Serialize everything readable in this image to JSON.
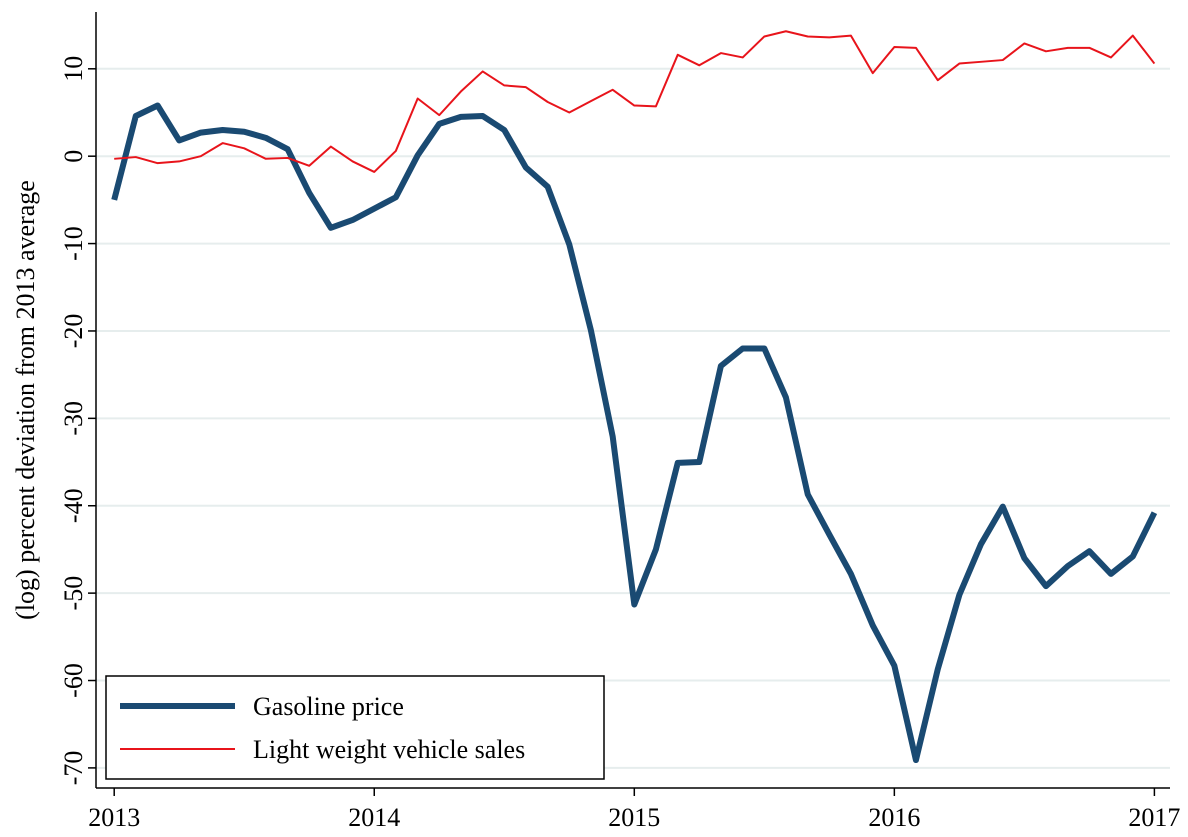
{
  "chart_data": {
    "type": "line",
    "y_label": "(log) percent deviation from 2013 average",
    "x": [
      2013,
      2013.083,
      2013.167,
      2013.25,
      2013.333,
      2013.417,
      2013.5,
      2013.583,
      2013.667,
      2013.75,
      2013.833,
      2013.917,
      2014,
      2014.083,
      2014.167,
      2014.25,
      2014.333,
      2014.417,
      2014.5,
      2014.583,
      2014.667,
      2014.75,
      2014.833,
      2014.917,
      2015,
      2015.083,
      2015.167,
      2015.25,
      2015.333,
      2015.417,
      2015.5,
      2015.583,
      2015.667,
      2015.75,
      2015.833,
      2015.917,
      2016,
      2016.083,
      2016.167,
      2016.25,
      2016.333,
      2016.417,
      2016.5,
      2016.583,
      2016.667,
      2016.75,
      2016.833,
      2016.917,
      2017
    ],
    "series": [
      {
        "name": "Gasoline price",
        "color": "#1a4a72",
        "width": 6,
        "values": [
          -5.0,
          4.6,
          5.8,
          1.8,
          2.7,
          3.0,
          2.8,
          2.1,
          0.8,
          -4.2,
          -8.2,
          -7.3,
          -6.0,
          -4.7,
          0.1,
          3.7,
          4.5,
          4.6,
          3.0,
          -1.3,
          -3.5,
          -10.1,
          -19.9,
          -32.1,
          -51.3,
          -45.0,
          -35.1,
          -35.0,
          -24.0,
          -22.0,
          -22.0,
          -27.6,
          -38.7,
          -43.3,
          -47.8,
          -53.7,
          -58.3,
          -69.1,
          -58.7,
          -50.2,
          -44.4,
          -40.1,
          -46.0,
          -49.2,
          -46.9,
          -45.2,
          -47.8,
          -45.8,
          -40.8
        ]
      },
      {
        "name": "Light weight vehicle sales",
        "color": "#e8141b",
        "width": 2,
        "values": [
          -0.3,
          -0.1,
          -0.8,
          -0.6,
          0.0,
          1.5,
          0.9,
          -0.3,
          -0.2,
          -1.1,
          1.1,
          -0.6,
          -1.8,
          0.6,
          6.6,
          4.7,
          7.4,
          9.7,
          8.1,
          7.9,
          6.2,
          5.0,
          6.3,
          7.6,
          5.8,
          5.7,
          11.6,
          10.4,
          11.8,
          11.3,
          13.7,
          14.3,
          13.7,
          13.6,
          13.8,
          9.5,
          12.5,
          12.4,
          8.7,
          10.6,
          10.8,
          11.0,
          12.9,
          12.0,
          12.4,
          12.4,
          11.3,
          13.8,
          10.6
        ]
      }
    ],
    "xlim": [
      2012.93,
      2017.06
    ],
    "xticks": [
      2013,
      2014,
      2015,
      2016,
      2017
    ],
    "ylim": [
      -72.3,
      16.5
    ],
    "yticks": [
      -70,
      -60,
      -50,
      -40,
      -30,
      -20,
      -10,
      0,
      10
    ],
    "grid": true,
    "legend": "lower left"
  }
}
